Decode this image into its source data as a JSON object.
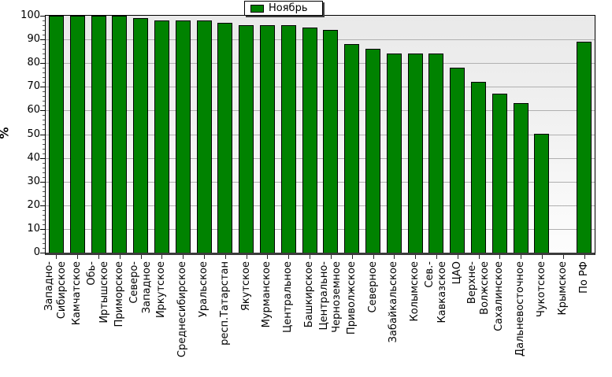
{
  "chart_data": {
    "type": "bar",
    "title": "",
    "ylabel": "%",
    "ylim": [
      0,
      100
    ],
    "yticks": [
      0,
      10,
      20,
      30,
      40,
      50,
      60,
      70,
      80,
      90,
      100
    ],
    "grid": "horizontal every 10, light gray",
    "legend_position": "top-center",
    "categories": [
      "Западно-\nСибирское",
      "Камчатское",
      "Обь-\nИртышское",
      "Приморское",
      "Северо-\nЗападное",
      "Иркутское",
      "Среднесибирское",
      "Уральское",
      "респ.Татарстан",
      "Якутское",
      "Мурманское",
      "Центральное",
      "Башкирское",
      "Центрально-\nЧерноземное",
      "Приволжское",
      "Северное",
      "Забайкальское",
      "Колымское",
      "Сев.-\nКавказское",
      "ЦАО",
      "Верхне-\nВолжское",
      "Сахалинское",
      "Дальневосточное",
      "Чукотское",
      "Крымское",
      "По РФ"
    ],
    "series": [
      {
        "name": "Ноябрь",
        "color": "#008200",
        "values": [
          100,
          100,
          100,
          100,
          99,
          98,
          98,
          98,
          97,
          96,
          96,
          96,
          95,
          94,
          88,
          86,
          84,
          84,
          84,
          78,
          72,
          67,
          63,
          50,
          null,
          89
        ]
      }
    ],
    "missing_data_categories": [
      "Крымское"
    ]
  },
  "colors": {
    "bar_fill": "#008200",
    "bar_border": "#000000",
    "grid_line": "#b0b0b0",
    "plot_bg_top": "#e9e9e9",
    "plot_bg_bottom": "#fdfdfd",
    "axis_border": "#000000",
    "baseline": "#3b3b3b",
    "text": "#000000",
    "legend_shadow": "#3f3f3f"
  }
}
